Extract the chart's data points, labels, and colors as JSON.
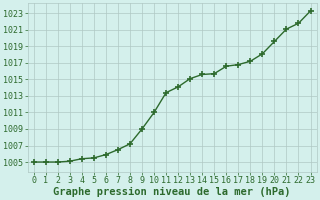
{
  "x": [
    0,
    1,
    2,
    3,
    4,
    5,
    6,
    7,
    8,
    9,
    10,
    11,
    12,
    13,
    14,
    15,
    16,
    17,
    18,
    19,
    20,
    21,
    22,
    23
  ],
  "y": [
    1005.0,
    1005.0,
    1005.0,
    1005.1,
    1005.4,
    1005.5,
    1005.9,
    1006.5,
    1007.2,
    1009.0,
    1011.0,
    1013.4,
    1014.1,
    1015.1,
    1015.6,
    1015.7,
    1016.6,
    1016.8,
    1017.2,
    1018.1,
    1019.6,
    1021.1,
    1021.8,
    1023.3
  ],
  "line_color": "#2d6a2d",
  "marker": "+",
  "marker_size": 5,
  "marker_lw": 1.2,
  "bg_color": "#d4f0ec",
  "grid_color": "#b0c8c4",
  "xlabel": "Graphe pression niveau de la mer (hPa)",
  "xlabel_color": "#2d6a2d",
  "xlabel_fontsize": 7.5,
  "ylabel_ticks": [
    1005,
    1007,
    1009,
    1011,
    1013,
    1015,
    1017,
    1019,
    1021,
    1023
  ],
  "ylim": [
    1003.8,
    1024.2
  ],
  "xlim": [
    -0.5,
    23.5
  ],
  "tick_color": "#2d6a2d",
  "tick_fontsize": 6,
  "line_width": 1.0
}
